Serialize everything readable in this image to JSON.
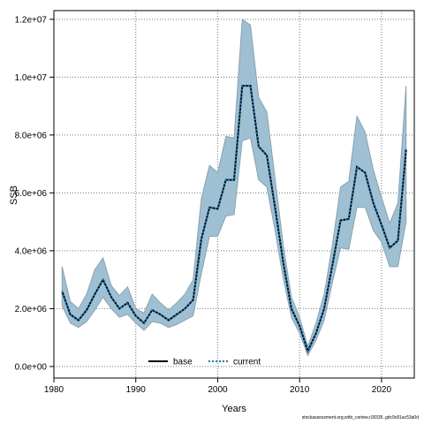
{
  "chart_data": {
    "type": "area",
    "xlabel": "Years",
    "ylabel": "SSB",
    "xlim": [
      1980,
      2024
    ],
    "ylim": [
      -400000,
      12300000
    ],
    "x_ticks": [
      1980,
      1990,
      2000,
      2010,
      2020
    ],
    "x_tick_labels": [
      "1980",
      "1990",
      "2000",
      "2010",
      "2020"
    ],
    "y_ticks": [
      0,
      2000000,
      4000000,
      6000000,
      8000000,
      10000000,
      12000000
    ],
    "y_tick_labels": [
      "0.0e+00",
      "2.0e+06",
      "4.0e+06",
      "6.0e+06",
      "8.0e+06",
      "1.0e+07",
      "1.2e+07"
    ],
    "grid": true,
    "legend_position": "bottom-center",
    "years": [
      1981,
      1982,
      1983,
      1984,
      1985,
      1986,
      1987,
      1988,
      1989,
      1990,
      1991,
      1992,
      1993,
      1994,
      1995,
      1996,
      1997,
      1998,
      1999,
      2000,
      2001,
      2002,
      2003,
      2004,
      2005,
      2006,
      2007,
      2008,
      2009,
      2010,
      2011,
      2012,
      2013,
      2014,
      2015,
      2016,
      2017,
      2018,
      2019,
      2020,
      2021,
      2022,
      2023
    ],
    "band": {
      "color": "#9fbfd2",
      "edge_color": "#8aa3b2",
      "lower": [
        2100000,
        1500000,
        1350000,
        1550000,
        1950000,
        2400000,
        2000000,
        1700000,
        1800000,
        1500000,
        1250000,
        1550000,
        1500000,
        1350000,
        1450000,
        1600000,
        1750000,
        3200000,
        4500000,
        4500000,
        5200000,
        5250000,
        7800000,
        7900000,
        6450000,
        6200000,
        4700000,
        3050000,
        1700000,
        1150000,
        380000,
        900000,
        1600000,
        2900000,
        4100000,
        4050000,
        5500000,
        5500000,
        4700000,
        4300000,
        3450000,
        3450000,
        5000000
      ],
      "upper": [
        3450000,
        2250000,
        2000000,
        2500000,
        3350000,
        3750000,
        2800000,
        2450000,
        2750000,
        2000000,
        1850000,
        2500000,
        2200000,
        1950000,
        2200000,
        2500000,
        3000000,
        5800000,
        6950000,
        6700000,
        7950000,
        7900000,
        12000000,
        11800000,
        9300000,
        8800000,
        6500000,
        4200000,
        2400000,
        1700000,
        700000,
        1500000,
        2500000,
        4200000,
        6200000,
        6400000,
        8650000,
        8100000,
        6800000,
        5850000,
        4950000,
        5650000,
        9700000
      ]
    },
    "series": [
      {
        "name": "base",
        "color": "#000000",
        "style": "solid",
        "values": [
          2600000,
          1800000,
          1600000,
          1950000,
          2500000,
          3000000,
          2400000,
          2000000,
          2200000,
          1750000,
          1500000,
          1950000,
          1800000,
          1600000,
          1800000,
          2000000,
          2300000,
          4400000,
          5500000,
          5450000,
          6450000,
          6450000,
          9700000,
          9700000,
          7600000,
          7300000,
          5500000,
          3600000,
          2000000,
          1400000,
          530000,
          1150000,
          2000000,
          3500000,
          5050000,
          5100000,
          6900000,
          6700000,
          5650000,
          4900000,
          4100000,
          4350000,
          7500000
        ]
      },
      {
        "name": "current",
        "color": "#1f77b4",
        "style": "dotted",
        "values": [
          2600000,
          1800000,
          1600000,
          1950000,
          2500000,
          3000000,
          2400000,
          2000000,
          2200000,
          1750000,
          1500000,
          1950000,
          1800000,
          1600000,
          1800000,
          2000000,
          2300000,
          4400000,
          5500000,
          5450000,
          6450000,
          6450000,
          9700000,
          9700000,
          7600000,
          7300000,
          5500000,
          3600000,
          2000000,
          1400000,
          530000,
          1150000,
          2000000,
          3500000,
          5050000,
          5100000,
          6900000,
          6700000,
          5650000,
          4900000,
          4100000,
          4350000,
          7500000
        ]
      }
    ]
  },
  "footer": "stockassessment.org,whb_cortew,r18335..gitc9c81ac53a0d"
}
